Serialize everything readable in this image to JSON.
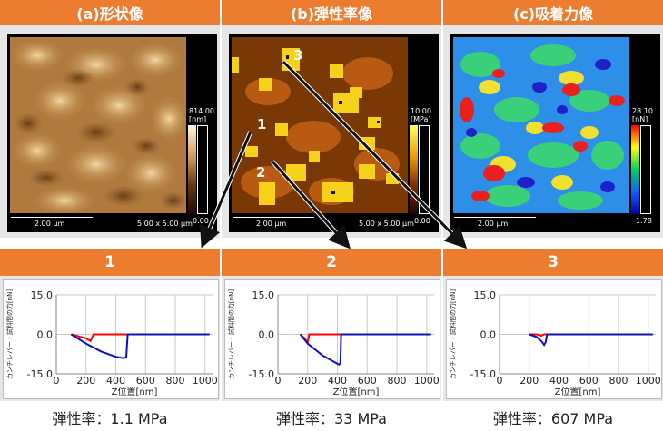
{
  "headers": [
    "(a)形状像",
    "(b)弾性率像",
    "(c)吸着力像"
  ],
  "maps": [
    {
      "scale": "2.00 μm",
      "size": "5.00 x 5.00 μm",
      "cb_max": "814.00",
      "cb_unit": "[nm]",
      "cb_min": "0.00"
    },
    {
      "scale": "2.00 μm",
      "size": "5.00 x 5.00 μm",
      "cb_max": "10.00",
      "cb_unit": "[MPa]",
      "cb_min": "0.00"
    },
    {
      "scale": "2.00 μm",
      "size": "",
      "cb_max": "28.10",
      "cb_unit": "[nN]",
      "cb_min": "1.78"
    }
  ],
  "point_labels": [
    "1",
    "2",
    "3"
  ],
  "graph_headers": [
    "1",
    "2",
    "3"
  ],
  "captions": [
    "弾性率：1.1 MPa",
    "弾性率：33 MPa",
    "弾性率：607 MPa"
  ],
  "colors": {
    "header": "#ec7c30",
    "approach": "#ff0000",
    "retract": "#1010c0"
  },
  "chart_data": [
    {
      "type": "line",
      "xlabel": "Z位置[nm]",
      "ylabel": "カンチレバー・試料間の力[nN]",
      "xlim": [
        0,
        1050
      ],
      "ylim": [
        -15,
        15
      ],
      "xticks": [
        0,
        200,
        400,
        600,
        800,
        1000
      ],
      "yticks": [
        "15.0",
        "0.0",
        "-15.0"
      ],
      "series": [
        {
          "color": "red",
          "x": [
            100,
            200,
            230,
            250,
            300,
            500,
            700,
            900,
            1030
          ],
          "y": [
            0,
            -1.5,
            -2.5,
            0,
            0,
            0,
            0,
            0,
            0
          ]
        },
        {
          "color": "blue",
          "x": [
            100,
            200,
            300,
            400,
            450,
            470,
            480,
            500,
            600,
            800,
            1030
          ],
          "y": [
            0,
            -3.5,
            -6.5,
            -8.5,
            -9,
            -8.8,
            0,
            0,
            0,
            0,
            0
          ]
        }
      ]
    },
    {
      "type": "line",
      "xlabel": "Z位置[nm]",
      "ylabel": "カンチレバー・試料間の力[nN]",
      "xlim": [
        0,
        1050
      ],
      "ylim": [
        -15,
        15
      ],
      "xticks": [
        0,
        200,
        400,
        600,
        800,
        1000
      ],
      "yticks": [
        "15.0",
        "0.0",
        "-15.0"
      ],
      "series": [
        {
          "color": "red",
          "x": [
            150,
            180,
            200,
            210,
            400,
            600,
            800,
            1030
          ],
          "y": [
            0,
            -1.5,
            -3,
            0,
            0,
            0,
            0,
            0
          ]
        },
        {
          "color": "blue",
          "x": [
            150,
            200,
            300,
            380,
            410,
            420,
            425,
            500,
            700,
            900,
            1030
          ],
          "y": [
            0,
            -3.5,
            -8,
            -10.5,
            -11.5,
            -11,
            0,
            0,
            0,
            0,
            0
          ]
        }
      ]
    },
    {
      "type": "line",
      "xlabel": "Z位置[nm]",
      "ylabel": "カンチレバー・試料間の力[nN]",
      "xlim": [
        0,
        1050
      ],
      "ylim": [
        -15,
        15
      ],
      "xticks": [
        0,
        200,
        400,
        600,
        800,
        1000
      ],
      "yticks": [
        "15.0",
        "0.0",
        "-15.0"
      ],
      "series": [
        {
          "color": "red",
          "x": [
            200,
            250,
            280,
            300,
            500,
            700,
            900,
            1030
          ],
          "y": [
            0,
            0,
            -0.5,
            0,
            0,
            0,
            0,
            0
          ]
        },
        {
          "color": "blue",
          "x": [
            200,
            250,
            280,
            300,
            310,
            320,
            500,
            700,
            900,
            1030
          ],
          "y": [
            0,
            -1,
            -2.5,
            -4,
            -3,
            0,
            0,
            0,
            0,
            0
          ]
        }
      ]
    }
  ]
}
